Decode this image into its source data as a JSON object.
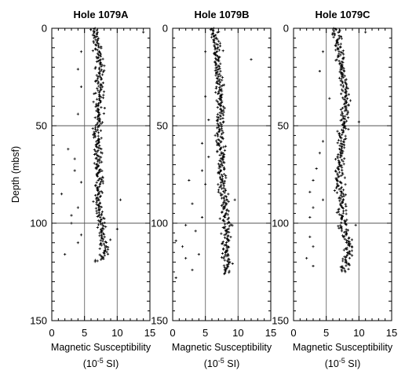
{
  "figure": {
    "ylabel": "Depth (mbsf)",
    "unit_prefix": "(10",
    "unit_exp": "-5",
    "unit_suffix": " SI)"
  },
  "chart_data": [
    {
      "type": "scatter",
      "title": "Hole 1079A",
      "xlabel": "Magnetic Susceptibility",
      "ylabel": "Depth (mbsf)",
      "xlim": [
        0,
        15
      ],
      "ylim": [
        150,
        0
      ],
      "xticks": [
        "0",
        "5",
        "10",
        "15"
      ],
      "yticks": [
        "0",
        "50",
        "100",
        "150"
      ],
      "grid": "vertical lines at 5 and 10; horizontal lines at 50 and 100",
      "profile": {
        "depth": [
          0,
          3,
          8,
          15,
          25,
          35,
          45,
          55,
          65,
          75,
          85,
          90,
          95,
          100,
          105,
          110,
          115,
          120
        ],
        "susceptibility": [
          6.5,
          6.6,
          7.0,
          7.2,
          7.3,
          7.4,
          7.1,
          6.9,
          7.0,
          7.2,
          7.2,
          7.0,
          7.4,
          7.6,
          7.8,
          8.0,
          8.2,
          7.0
        ]
      },
      "core_bottom_mbsf": 120,
      "outliers": [
        {
          "depth": 62,
          "value": 2.5
        },
        {
          "depth": 73,
          "value": 3.5
        },
        {
          "depth": 85,
          "value": 1.5
        },
        {
          "depth": 92,
          "value": 4.0
        },
        {
          "depth": 96,
          "value": 3.0
        },
        {
          "depth": 100,
          "value": 3.0
        },
        {
          "depth": 110,
          "value": 4.0
        },
        {
          "depth": 116,
          "value": 2.0
        },
        {
          "depth": 88,
          "value": 10.5
        },
        {
          "depth": 30,
          "value": 4.5
        },
        {
          "depth": 44,
          "value": 4.0
        },
        {
          "depth": 103,
          "value": 10.0
        },
        {
          "depth": 2,
          "value": 14.0
        },
        {
          "depth": 12,
          "value": 4.5
        },
        {
          "depth": 79,
          "value": 4.5
        },
        {
          "depth": 67,
          "value": 3.5
        },
        {
          "depth": 106,
          "value": 4.5
        },
        {
          "depth": 21,
          "value": 4.0
        }
      ]
    },
    {
      "type": "scatter",
      "title": "Hole 1079B",
      "xlabel": "Magnetic Susceptibility",
      "ylabel": "",
      "xlim": [
        0,
        15
      ],
      "ylim": [
        150,
        0
      ],
      "xticks": [
        "0",
        "5",
        "10",
        "15"
      ],
      "yticks": [
        "0",
        "50",
        "100",
        "150"
      ],
      "grid": "vertical lines at 5 and 10; horizontal lines at 50 and 100",
      "profile": {
        "depth": [
          0,
          5,
          15,
          25,
          35,
          45,
          55,
          65,
          75,
          85,
          95,
          100,
          105,
          110,
          115,
          120,
          125
        ],
        "susceptibility": [
          6.3,
          6.6,
          6.9,
          7.2,
          7.3,
          7.4,
          7.2,
          7.6,
          7.4,
          7.6,
          8.0,
          8.2,
          8.3,
          8.1,
          7.9,
          8.4,
          8.2
        ]
      },
      "core_bottom_mbsf": 126,
      "outliers": [
        {
          "depth": 12,
          "value": 5.0
        },
        {
          "depth": 16,
          "value": 12.0
        },
        {
          "depth": 35,
          "value": 5.0
        },
        {
          "depth": 47,
          "value": 5.5
        },
        {
          "depth": 59,
          "value": 4.5
        },
        {
          "depth": 73,
          "value": 4.5
        },
        {
          "depth": 78,
          "value": 2.5
        },
        {
          "depth": 80,
          "value": 5.0
        },
        {
          "depth": 90,
          "value": 3.0
        },
        {
          "depth": 97,
          "value": 4.5
        },
        {
          "depth": 101,
          "value": 2.0
        },
        {
          "depth": 104,
          "value": 3.5
        },
        {
          "depth": 109,
          "value": 0.5
        },
        {
          "depth": 112,
          "value": 1.5
        },
        {
          "depth": 116,
          "value": 4.0
        },
        {
          "depth": 118,
          "value": 2.0
        },
        {
          "depth": 124,
          "value": 3.0
        },
        {
          "depth": 128,
          "value": 0.5
        },
        {
          "depth": 88,
          "value": 9.5
        },
        {
          "depth": 66,
          "value": 5.5
        }
      ]
    },
    {
      "type": "scatter",
      "title": "Hole 1079C",
      "xlabel": "Magnetic Susceptibility",
      "ylabel": "",
      "xlim": [
        0,
        15
      ],
      "ylim": [
        150,
        0
      ],
      "xticks": [
        "0",
        "5",
        "10",
        "15"
      ],
      "yticks": [
        "0",
        "50",
        "100",
        "150"
      ],
      "grid": "vertical lines at 5 and 10; horizontal lines at 50 and 100",
      "profile": {
        "depth": [
          0,
          5,
          15,
          25,
          35,
          45,
          55,
          65,
          75,
          85,
          95,
          100,
          105,
          110,
          115,
          120,
          125
        ],
        "susceptibility": [
          6.3,
          6.6,
          7.3,
          7.6,
          7.8,
          8.0,
          7.4,
          7.2,
          7.0,
          7.2,
          7.4,
          7.6,
          7.7,
          8.2,
          8.4,
          8.0,
          7.8
        ]
      },
      "core_bottom_mbsf": 125,
      "outliers": [
        {
          "depth": 48,
          "value": 10.0
        },
        {
          "depth": 12,
          "value": 4.5
        },
        {
          "depth": 22,
          "value": 4.0
        },
        {
          "depth": 36,
          "value": 5.5
        },
        {
          "depth": 58,
          "value": 4.5
        },
        {
          "depth": 64,
          "value": 4.0
        },
        {
          "depth": 72,
          "value": 3.5
        },
        {
          "depth": 78,
          "value": 3.0
        },
        {
          "depth": 84,
          "value": 2.5
        },
        {
          "depth": 92,
          "value": 3.0
        },
        {
          "depth": 97,
          "value": 2.5
        },
        {
          "depth": 107,
          "value": 2.5
        },
        {
          "depth": 112,
          "value": 3.0
        },
        {
          "depth": 118,
          "value": 2.0
        },
        {
          "depth": 122,
          "value": 3.0
        },
        {
          "depth": 2,
          "value": 11.0
        },
        {
          "depth": 101,
          "value": 9.5
        },
        {
          "depth": 88,
          "value": 4.5
        }
      ]
    }
  ]
}
